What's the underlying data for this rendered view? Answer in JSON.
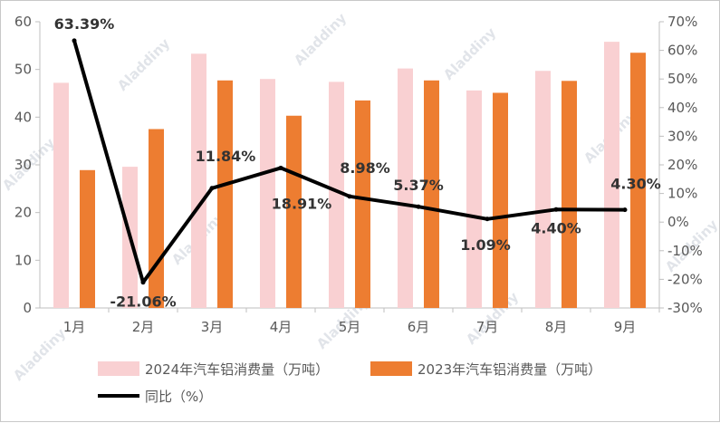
{
  "chart_data": {
    "type": "bar",
    "title": "",
    "categories": [
      "1月",
      "2月",
      "3月",
      "4月",
      "5月",
      "6月",
      "7月",
      "8月",
      "9月"
    ],
    "series": [
      {
        "name": "2024年汽车铝消费量（万吨）",
        "type": "bar",
        "axis": "left",
        "color": "#f9d0d2",
        "values": [
          47.2,
          29.6,
          53.3,
          48.0,
          47.4,
          50.2,
          45.6,
          49.7,
          55.8
        ]
      },
      {
        "name": "2023年汽车铝消费量（万吨）",
        "type": "bar",
        "axis": "left",
        "color": "#ed7d31",
        "values": [
          28.9,
          37.5,
          47.7,
          40.3,
          43.5,
          47.7,
          45.1,
          47.6,
          53.5
        ]
      },
      {
        "name": "同比（%）",
        "type": "line",
        "axis": "right",
        "color": "#000000",
        "values": [
          63.39,
          -21.06,
          11.84,
          18.91,
          8.98,
          5.37,
          1.09,
          4.4,
          4.3
        ]
      }
    ],
    "data_labels": [
      "63.39%",
      "-21.06%",
      "11.84%",
      "18.91%",
      "8.98%",
      "5.37%",
      "1.09%",
      "4.40%",
      "4.30%"
    ],
    "y_left": {
      "ylim": [
        0,
        60
      ],
      "ticks": [
        0,
        10,
        20,
        30,
        40,
        50,
        60
      ]
    },
    "y_right": {
      "ylim": [
        -30,
        70
      ],
      "ticks": [
        "-30%",
        "-20%",
        "-10%",
        "0%",
        "10%",
        "20%",
        "30%",
        "40%",
        "50%",
        "60%",
        "70%"
      ]
    },
    "legend_position": "bottom",
    "grid": false,
    "watermark": "Aladdiny"
  }
}
